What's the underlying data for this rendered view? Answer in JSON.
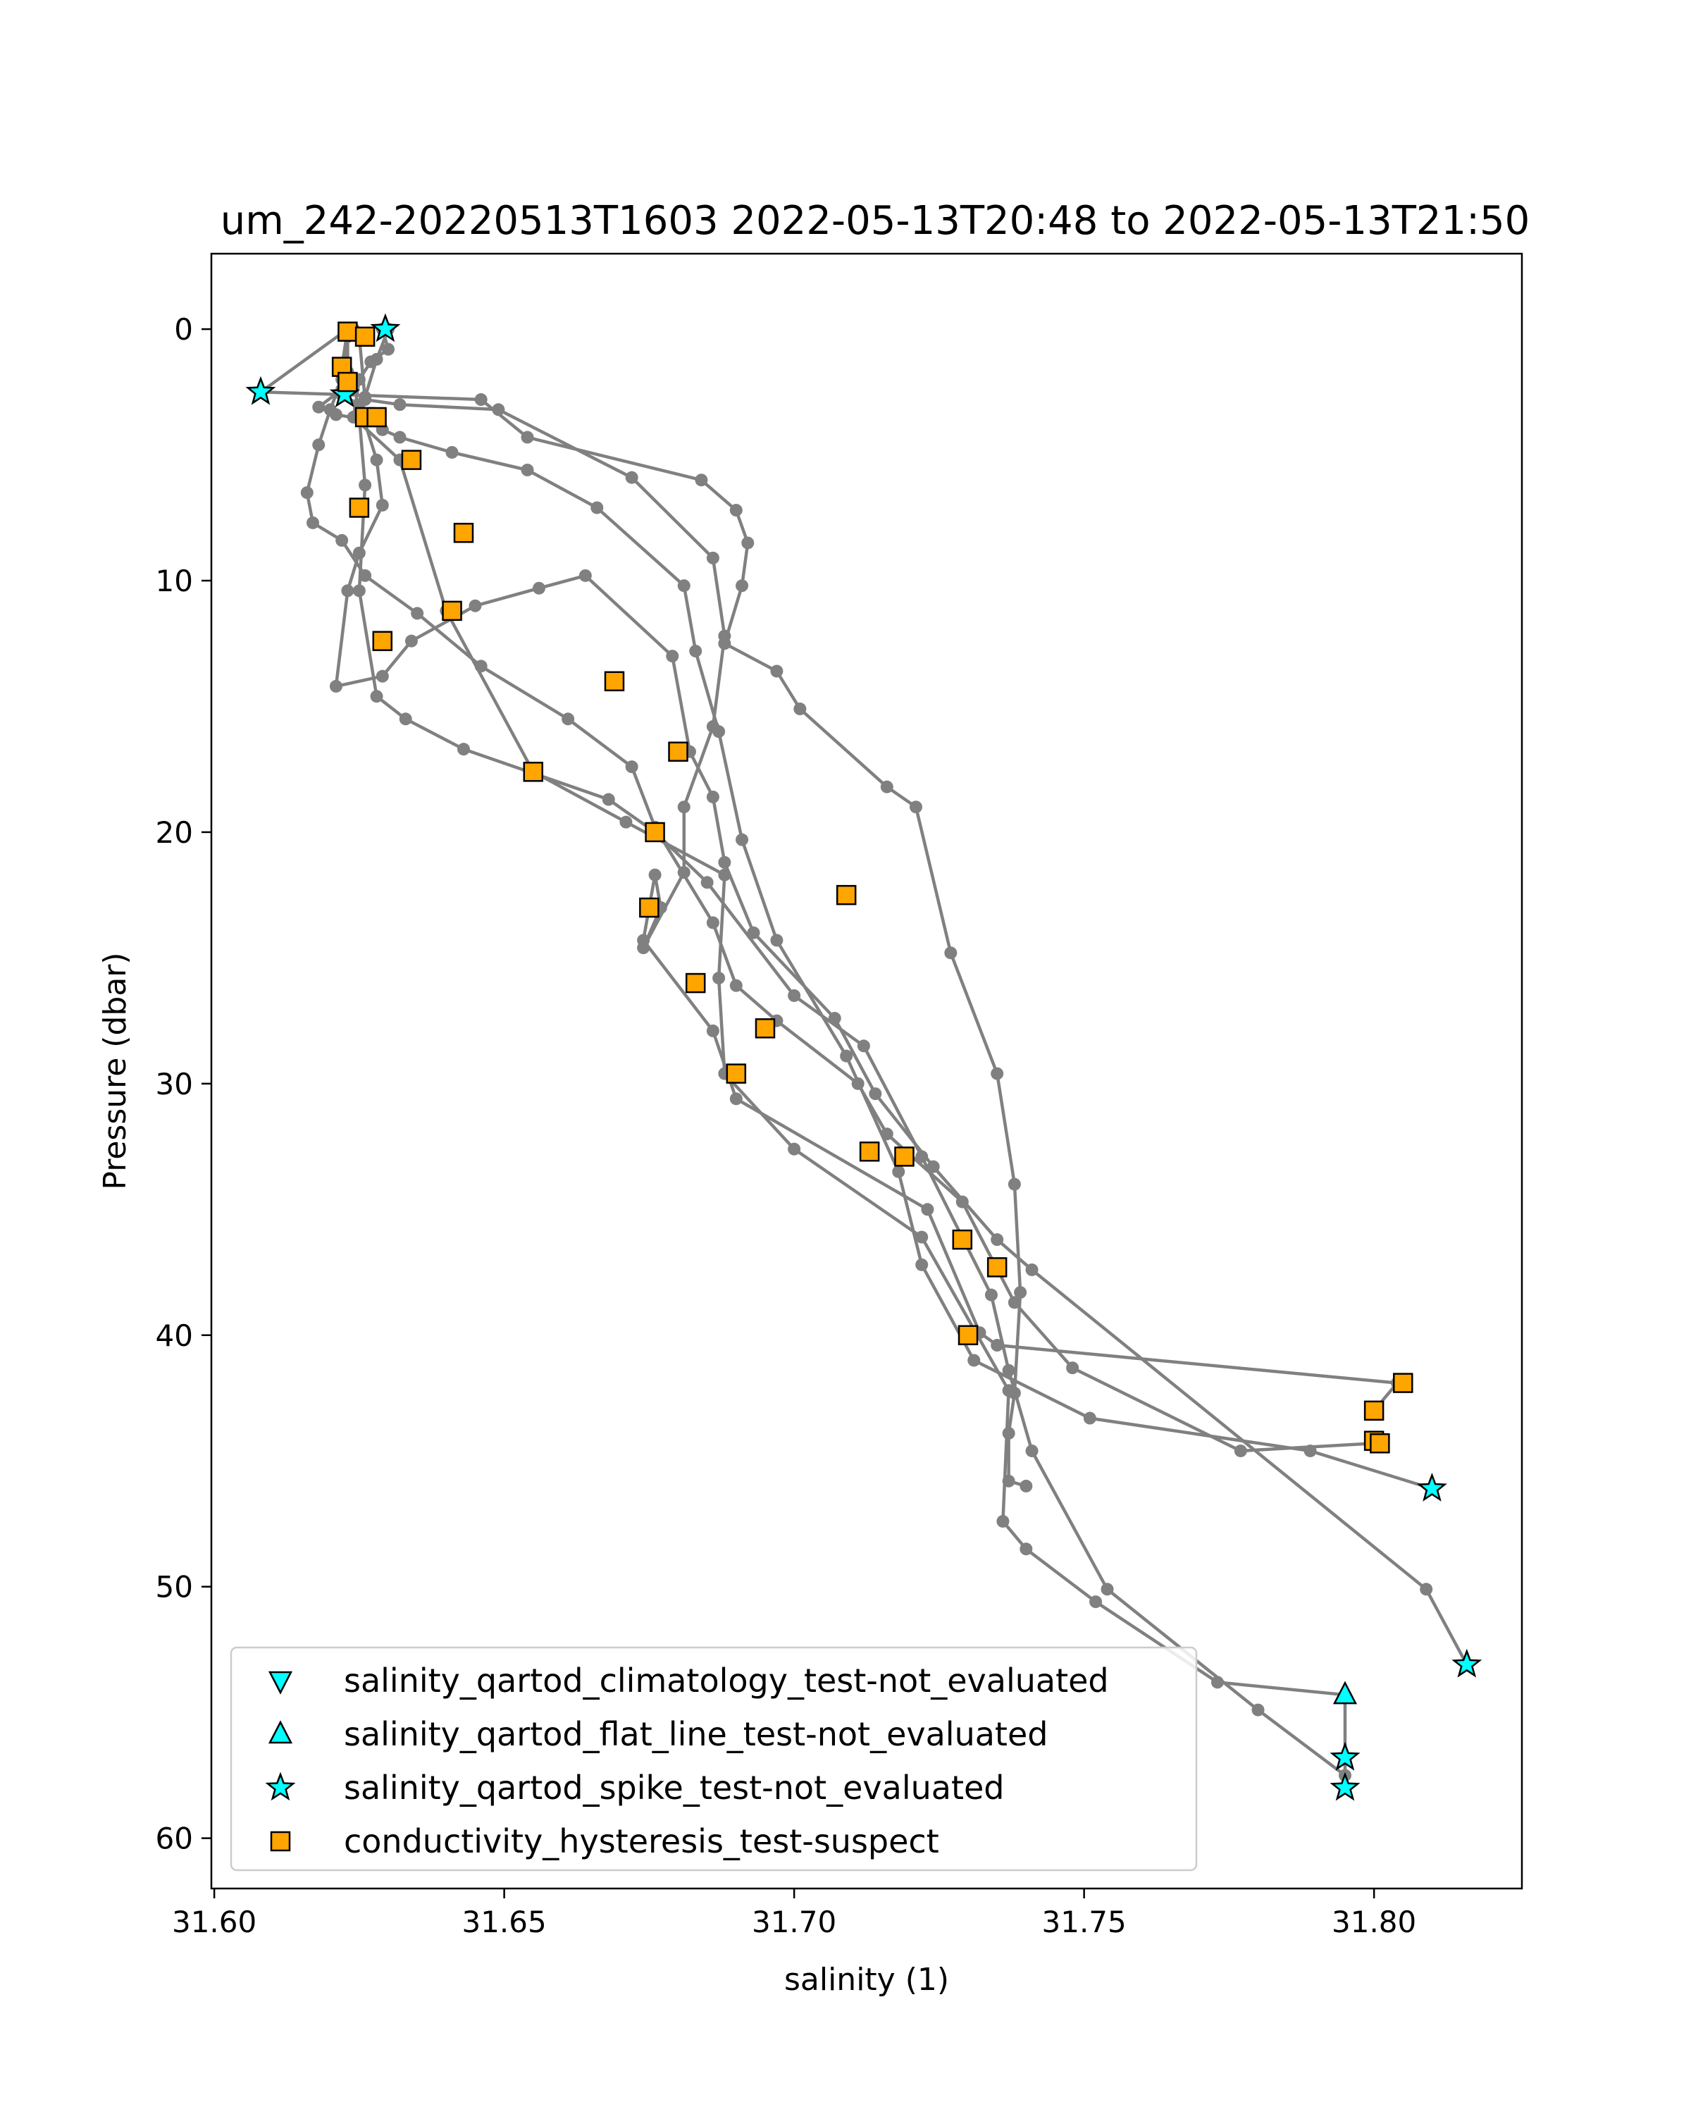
{
  "chart_data": {
    "type": "scatter",
    "title": "um_242-20220513T1603 2022-05-13T20:48 to 2022-05-13T21:50",
    "xlabel": "salinity (1)",
    "ylabel": "Pressure (dbar)",
    "xlim": [
      31.5995,
      31.8255
    ],
    "ylim": [
      62,
      -3
    ],
    "y_inverted": true,
    "grid": false,
    "legend_position": "lower-left",
    "x_ticks": [
      31.6,
      31.65,
      31.7,
      31.75,
      31.8
    ],
    "x_tick_labels": [
      "31.60",
      "31.65",
      "31.70",
      "31.75",
      "31.80"
    ],
    "y_ticks": [
      0,
      10,
      20,
      30,
      40,
      50,
      60
    ],
    "y_tick_labels": [
      "0",
      "10",
      "20",
      "30",
      "40",
      "50",
      "60"
    ],
    "profile_color": "#808080",
    "profiles": [
      {
        "x": [
          31.629,
          31.63,
          31.627,
          31.625,
          31.624,
          31.632,
          31.64,
          31.655,
          31.671,
          31.688,
          31.687,
          31.688,
          31.7,
          31.722,
          31.737,
          31.736,
          31.74,
          31.752,
          31.773,
          31.795,
          31.795,
          31.795
        ],
        "y": [
          0.0,
          0.8,
          1.3,
          2.0,
          3.5,
          5.2,
          11.2,
          17.6,
          19.6,
          21.7,
          25.8,
          29.6,
          32.6,
          36.1,
          42.2,
          47.4,
          48.5,
          50.6,
          53.8,
          54.3,
          56.8,
          58.0
        ]
      },
      {
        "x": [
          31.63,
          31.628,
          31.626,
          31.625,
          31.626,
          31.625,
          31.628,
          31.633,
          31.643,
          31.668,
          31.676,
          31.685,
          31.7,
          31.712,
          31.722,
          31.734,
          31.737,
          31.741,
          31.754,
          31.78,
          31.795,
          31.795
        ],
        "y": [
          0.0,
          1.2,
          2.7,
          3.5,
          6.2,
          10.4,
          14.6,
          15.5,
          16.7,
          18.7,
          20.0,
          22.0,
          26.5,
          28.5,
          32.9,
          38.4,
          41.4,
          44.6,
          50.1,
          54.9,
          57.5,
          58.0
        ]
      },
      {
        "x": [
          31.624,
          31.623,
          31.622,
          31.62,
          31.618,
          31.616,
          31.617,
          31.622,
          31.626,
          31.635,
          31.646,
          31.661,
          31.672,
          31.676,
          31.686,
          31.69,
          31.697,
          31.711,
          31.716,
          31.729,
          31.738,
          31.748,
          31.777,
          31.8
        ],
        "y": [
          0.0,
          0.2,
          2.0,
          3.2,
          4.6,
          6.5,
          7.7,
          8.4,
          9.8,
          11.3,
          13.4,
          15.5,
          17.4,
          19.8,
          23.6,
          26.1,
          27.5,
          30.0,
          32.0,
          34.7,
          38.7,
          41.3,
          44.6,
          44.3
        ]
      },
      {
        "x": [
          31.623,
          31.622,
          31.622,
          31.618,
          31.621,
          31.626,
          31.629,
          31.632,
          31.641,
          31.654,
          31.666,
          31.681,
          31.683,
          31.687,
          31.691,
          31.697,
          31.709,
          31.718,
          31.722,
          31.731,
          31.751,
          31.789,
          31.81
        ],
        "y": [
          0.0,
          1.5,
          2.4,
          3.1,
          3.4,
          3.6,
          4.0,
          4.3,
          4.9,
          5.6,
          7.1,
          10.2,
          12.8,
          16.0,
          20.3,
          24.3,
          28.9,
          33.5,
          37.2,
          41.0,
          43.3,
          44.6,
          46.1
        ]
      },
      {
        "x": [
          31.624,
          31.623,
          31.623,
          31.622,
          31.625,
          31.628,
          31.629,
          31.625,
          31.623,
          31.621,
          31.629,
          31.634,
          31.645,
          31.656,
          31.664,
          31.679,
          31.682,
          31.686,
          31.688,
          31.693,
          31.707,
          31.714,
          31.724,
          31.735,
          31.741,
          31.809,
          31.816
        ],
        "y": [
          0.0,
          0.3,
          1.7,
          2.6,
          3.0,
          5.2,
          7.0,
          8.9,
          10.4,
          14.2,
          13.8,
          12.4,
          11.0,
          10.3,
          9.8,
          13.0,
          16.8,
          18.6,
          21.2,
          24.0,
          27.4,
          30.4,
          33.3,
          36.2,
          37.4,
          50.1,
          53.1
        ]
      },
      {
        "x": [
          31.624,
          31.625,
          31.626,
          31.632,
          31.649,
          31.672,
          31.686,
          31.688,
          31.686,
          31.681,
          31.681,
          31.674,
          31.677,
          31.676,
          31.674,
          31.686,
          31.69,
          31.723,
          31.732,
          31.735,
          31.804,
          31.8
        ],
        "y": [
          0.0,
          0.3,
          2.8,
          3.0,
          3.2,
          5.9,
          9.1,
          12.2,
          15.8,
          19.0,
          21.6,
          24.6,
          23.0,
          21.7,
          24.3,
          27.9,
          30.6,
          35.0,
          39.9,
          40.4,
          41.9,
          43.0
        ]
      },
      {
        "x": [
          31.623,
          31.608,
          31.622,
          31.646,
          31.654,
          31.684,
          31.69,
          31.692,
          31.691,
          31.688,
          31.697,
          31.701,
          31.716,
          31.721,
          31.727,
          31.735,
          31.738,
          31.739,
          31.738,
          31.737,
          31.737,
          31.74
        ],
        "y": [
          0.0,
          2.5,
          2.6,
          2.8,
          4.3,
          6.0,
          7.2,
          8.5,
          10.2,
          12.5,
          13.6,
          15.1,
          18.2,
          19.0,
          24.8,
          29.6,
          34.0,
          38.3,
          42.3,
          43.9,
          45.8,
          46.0
        ]
      }
    ],
    "series": [
      {
        "name": "salinity_qartod_climatology_test-not_evaluated",
        "marker": "triangle-down",
        "color": "#00ffff",
        "points": []
      },
      {
        "name": "salinity_qartod_flat_line_test-not_evaluated",
        "marker": "triangle-up",
        "color": "#00ffff",
        "points": [
          [
            31.795,
            54.3
          ]
        ]
      },
      {
        "name": "salinity_qartod_spike_test-not_evaluated",
        "marker": "star",
        "color": "#00ffff",
        "points": [
          [
            31.6295,
            0.0
          ],
          [
            31.608,
            2.5
          ],
          [
            31.6225,
            2.6
          ],
          [
            31.81,
            46.1
          ],
          [
            31.816,
            53.1
          ],
          [
            31.795,
            56.8
          ],
          [
            31.795,
            58.0
          ]
        ]
      },
      {
        "name": "conductivity_hysteresis_test-suspect",
        "marker": "square",
        "color": "#ffa500",
        "points": [
          [
            31.623,
            0.1
          ],
          [
            31.626,
            0.3
          ],
          [
            31.622,
            1.5
          ],
          [
            31.623,
            2.1
          ],
          [
            31.626,
            3.5
          ],
          [
            31.628,
            3.5
          ],
          [
            31.634,
            5.2
          ],
          [
            31.643,
            8.1
          ],
          [
            31.625,
            7.1
          ],
          [
            31.641,
            11.2
          ],
          [
            31.629,
            12.4
          ],
          [
            31.669,
            14.0
          ],
          [
            31.655,
            17.6
          ],
          [
            31.68,
            16.8
          ],
          [
            31.676,
            20.0
          ],
          [
            31.675,
            23.0
          ],
          [
            31.709,
            22.5
          ],
          [
            31.683,
            26.0
          ],
          [
            31.695,
            27.8
          ],
          [
            31.69,
            29.6
          ],
          [
            31.713,
            32.7
          ],
          [
            31.719,
            32.9
          ],
          [
            31.729,
            36.2
          ],
          [
            31.735,
            37.3
          ],
          [
            31.73,
            40.0
          ],
          [
            31.805,
            41.9
          ],
          [
            31.8,
            43.0
          ],
          [
            31.8,
            44.2
          ],
          [
            31.801,
            44.3
          ]
        ]
      }
    ]
  }
}
